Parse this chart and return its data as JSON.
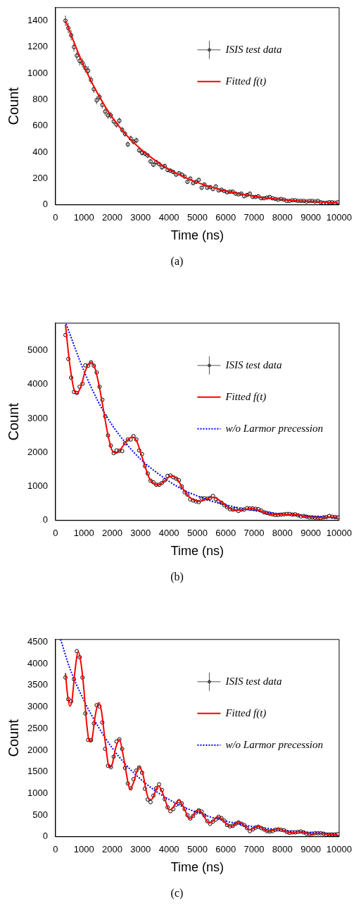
{
  "chart_data": [
    {
      "type": "scatter",
      "xlabel": "Time (ns)",
      "ylabel": "Count",
      "xlim": [
        0,
        10000
      ],
      "ylim": [
        0,
        1500
      ],
      "xticks": [
        0,
        1000,
        2000,
        3000,
        4000,
        5000,
        6000,
        7000,
        8000,
        9000,
        10000
      ],
      "yticks": [
        0,
        200,
        400,
        600,
        800,
        1000,
        1200,
        1400
      ],
      "grid": false,
      "legend": "top right",
      "annotations": [
        "(a)"
      ],
      "series": [
        {
          "name": "ISIS test data",
          "marker": "circle",
          "color": "#000000",
          "x": [
            350,
            450,
            550,
            650,
            750,
            850,
            950,
            1050,
            1150,
            1250,
            1350,
            1450,
            1550,
            1650,
            1750,
            1850,
            1950,
            2050,
            2150,
            2250,
            2350,
            2450,
            2550,
            2650,
            2750,
            2850,
            2950,
            3050,
            3150,
            3250,
            3350,
            3450,
            3550,
            3650,
            3750,
            3850,
            3950,
            4050,
            4150,
            4250,
            4350,
            4450,
            4550,
            4650,
            4750,
            4850,
            4950,
            5050,
            5150,
            5250,
            5350,
            5450,
            5550,
            5650,
            5750,
            5850,
            5950,
            6050,
            6150,
            6250,
            6350,
            6450,
            6550,
            6650,
            6750,
            6850,
            6950,
            7050,
            7150,
            7250,
            7350,
            7450,
            7550,
            7650,
            7750,
            7850,
            7950,
            8050,
            8150,
            8250,
            8350,
            8450,
            8550,
            8650,
            8750,
            8850,
            8950,
            9050,
            9150,
            9250,
            9350,
            9450,
            9550,
            9650,
            9750,
            9850,
            9950
          ],
          "values": [
            1400,
            1345,
            1290,
            1200,
            1135,
            1095,
            1080,
            1040,
            1020,
            950,
            880,
            795,
            820,
            760,
            710,
            680,
            680,
            635,
            610,
            640,
            570,
            540,
            460,
            505,
            480,
            490,
            415,
            395,
            390,
            375,
            330,
            305,
            325,
            310,
            285,
            295,
            265,
            260,
            250,
            230,
            240,
            230,
            215,
            175,
            200,
            165,
            175,
            190,
            130,
            155,
            130,
            135,
            120,
            140,
            110,
            115,
            105,
            95,
            100,
            100,
            85,
            80,
            85,
            65,
            75,
            85,
            60,
            60,
            65,
            50,
            50,
            55,
            60,
            50,
            45,
            40,
            45,
            40,
            30,
            30,
            35,
            35,
            30,
            30,
            30,
            25,
            30,
            30,
            25,
            30,
            20,
            15,
            15,
            20,
            20,
            15,
            20
          ],
          "errors": [
            40,
            40,
            40,
            35,
            35,
            35,
            35,
            35,
            35,
            30,
            30,
            30,
            30,
            30,
            30,
            28,
            28,
            25,
            25,
            25,
            24,
            24,
            22,
            22,
            22,
            22,
            20,
            20,
            20,
            20,
            18,
            18,
            18,
            18,
            17,
            17,
            16,
            16,
            16,
            15,
            15,
            15,
            15,
            14,
            14,
            13,
            13,
            14,
            12,
            12,
            12,
            12,
            11,
            12,
            11,
            11,
            10,
            10,
            10,
            10,
            9,
            9,
            9,
            8,
            9,
            9,
            8,
            8,
            8,
            7,
            7,
            7,
            8,
            7,
            7,
            6,
            7,
            6,
            6,
            6,
            6,
            6,
            6,
            6,
            6,
            5,
            6,
            6,
            5,
            6,
            5,
            null,
            null,
            5,
            5,
            null,
            5
          ]
        },
        {
          "name": "Fitted f(t)",
          "type": "line",
          "marker": "none",
          "color": "#ff0000",
          "x": [
            350,
            1000,
            1500,
            2000,
            2500,
            3000,
            3500,
            4000,
            4500,
            5000,
            5500,
            6000,
            6500,
            7000,
            7500,
            8000,
            8500,
            9000,
            9500,
            9950
          ],
          "values": [
            1400,
            1055,
            840,
            665,
            530,
            425,
            340,
            270,
            215,
            170,
            135,
            105,
            85,
            65,
            50,
            40,
            30,
            25,
            20,
            15
          ]
        }
      ]
    },
    {
      "type": "scatter",
      "xlabel": "Time (ns)",
      "ylabel": "Count",
      "xlim": [
        0,
        10000
      ],
      "ylim": [
        0,
        5800
      ],
      "xticks": [
        0,
        1000,
        2000,
        3000,
        4000,
        5000,
        6000,
        7000,
        8000,
        9000,
        10000
      ],
      "yticks": [
        0,
        1000,
        2000,
        3000,
        4000,
        5000
      ],
      "grid": false,
      "legend": "top right",
      "annotations": [
        "(b)"
      ],
      "series": [
        {
          "name": "ISIS test data",
          "marker": "circle",
          "color": "#000000",
          "x": [
            350,
            450,
            550,
            650,
            750,
            850,
            950,
            1050,
            1150,
            1250,
            1350,
            1450,
            1550,
            1650,
            1750,
            1850,
            1950,
            2050,
            2150,
            2250,
            2350,
            2450,
            2550,
            2650,
            2750,
            2850,
            2950,
            3050,
            3150,
            3250,
            3350,
            3450,
            3550,
            3650,
            3750,
            3850,
            3950,
            4050,
            4150,
            4250,
            4350,
            4450,
            4550,
            4650,
            4750,
            4850,
            4950,
            5050,
            5150,
            5250,
            5350,
            5450,
            5550,
            5650,
            5750,
            5850,
            5950,
            6050,
            6150,
            6250,
            6350,
            6450,
            6550,
            6650,
            6750,
            6850,
            6950,
            7050,
            7150,
            7250,
            7350,
            7450,
            7550,
            7650,
            7750,
            7850,
            7950,
            8050,
            8150,
            8250,
            8350,
            8450,
            8550,
            8650,
            8750,
            8850,
            8950,
            9050,
            9150,
            9250,
            9350,
            9450,
            9550,
            9650,
            9750,
            9850,
            9950
          ],
          "values": [
            5450,
            4750,
            4200,
            3780,
            3750,
            3930,
            4020,
            4560,
            4550,
            4650,
            4550,
            4350,
            3930,
            3550,
            3060,
            2500,
            2200,
            1980,
            2060,
            2050,
            2040,
            2270,
            2380,
            2380,
            2480,
            2380,
            2060,
            1950,
            1600,
            1380,
            1170,
            1120,
            1050,
            1050,
            1100,
            1180,
            1310,
            1320,
            1270,
            1230,
            1180,
            1000,
            830,
            760,
            620,
            590,
            560,
            540,
            650,
            650,
            640,
            660,
            720,
            630,
            560,
            520,
            450,
            390,
            330,
            320,
            330,
            280,
            320,
            320,
            360,
            350,
            350,
            340,
            330,
            290,
            240,
            220,
            200,
            180,
            160,
            160,
            170,
            180,
            190,
            190,
            170,
            180,
            150,
            120,
            130,
            110,
            90,
            90,
            80,
            80,
            70,
            90,
            100,
            130,
            110,
            100,
            90
          ]
        },
        {
          "name": "Fitted f(t)",
          "type": "line",
          "marker": "none",
          "color": "#ff0000",
          "x": [
            350,
            500,
            650,
            750,
            900,
            1050,
            1250,
            1400,
            1550,
            1700,
            1850,
            2000,
            2150,
            2300,
            2500,
            2700,
            2850,
            3000,
            3150,
            3300,
            3450,
            3600,
            3800,
            4000,
            4100,
            4300,
            4500,
            4700,
            4900,
            5100,
            5300,
            5500,
            5650,
            5850,
            6050,
            6250,
            6450,
            6700,
            6900,
            7150,
            7400,
            7700,
            8000,
            8300,
            8550,
            8800,
            9100,
            9400,
            9700,
            9950
          ],
          "values": [
            5750,
            4600,
            3850,
            3730,
            3950,
            4400,
            4650,
            4450,
            3900,
            3200,
            2500,
            2050,
            1980,
            2100,
            2330,
            2450,
            2350,
            2000,
            1600,
            1250,
            1100,
            1040,
            1130,
            1280,
            1300,
            1200,
            920,
            700,
            590,
            560,
            620,
            680,
            660,
            540,
            400,
            310,
            300,
            330,
            350,
            310,
            220,
            170,
            170,
            180,
            160,
            110,
            90,
            80,
            100,
            90
          ]
        },
        {
          "name": "w/o Larmor precession",
          "type": "line",
          "marker": "none",
          "color": "#0000ff",
          "line_style": "dotted",
          "x": [
            370,
            1000,
            1500,
            2000,
            2500,
            3000,
            3500,
            4000,
            4500,
            5000,
            5500,
            6000,
            6500,
            7000,
            7500,
            8000,
            8500,
            9000,
            9500,
            9950
          ],
          "values": [
            5780,
            4400,
            3500,
            2800,
            2250,
            1800,
            1450,
            1150,
            900,
            720,
            570,
            460,
            360,
            290,
            230,
            190,
            150,
            120,
            100,
            80
          ]
        }
      ]
    },
    {
      "type": "scatter",
      "xlabel": "Time (ns)",
      "ylabel": "Count",
      "xlim": [
        0,
        10000
      ],
      "ylim": [
        0,
        4560
      ],
      "xticks": [
        0,
        1000,
        2000,
        3000,
        4000,
        5000,
        6000,
        7000,
        8000,
        9000,
        10000
      ],
      "yticks": [
        0,
        500,
        1000,
        1500,
        2000,
        2500,
        3000,
        3500,
        4000,
        4500
      ],
      "grid": false,
      "legend": "top right",
      "annotations": [
        "(c)"
      ],
      "series": [
        {
          "name": "ISIS test data",
          "marker": "circle",
          "color": "#000000",
          "x": [
            350,
            450,
            550,
            650,
            750,
            850,
            950,
            1050,
            1150,
            1250,
            1350,
            1450,
            1550,
            1650,
            1750,
            1850,
            1950,
            2050,
            2150,
            2250,
            2350,
            2450,
            2550,
            2650,
            2750,
            2850,
            2950,
            3050,
            3150,
            3250,
            3350,
            3450,
            3550,
            3650,
            3750,
            3850,
            3950,
            4050,
            4150,
            4250,
            4350,
            4450,
            4550,
            4650,
            4750,
            4850,
            4950,
            5050,
            5150,
            5250,
            5350,
            5450,
            5550,
            5650,
            5750,
            5850,
            5950,
            6050,
            6150,
            6250,
            6350,
            6450,
            6550,
            6650,
            6750,
            6850,
            6950,
            7050,
            7150,
            7250,
            7350,
            7450,
            7550,
            7650,
            7750,
            7850,
            7950,
            8050,
            8150,
            8250,
            8350,
            8450,
            8550,
            8650,
            8750,
            8850,
            8950,
            9050,
            9150,
            9250,
            9350,
            9450,
            9550,
            9650,
            9750,
            9850,
            9950
          ],
          "values": [
            3680,
            3180,
            3130,
            3640,
            4290,
            4150,
            3680,
            2850,
            2240,
            2230,
            2620,
            3040,
            3010,
            2640,
            2030,
            1640,
            1610,
            1850,
            2200,
            2250,
            2030,
            1590,
            1230,
            1120,
            1330,
            1530,
            1600,
            1480,
            1110,
            860,
            800,
            950,
            1120,
            1210,
            1080,
            870,
            680,
            590,
            640,
            740,
            820,
            770,
            640,
            500,
            420,
            480,
            560,
            610,
            580,
            490,
            360,
            300,
            350,
            400,
            460,
            430,
            370,
            270,
            240,
            250,
            300,
            330,
            300,
            270,
            200,
            130,
            170,
            210,
            230,
            200,
            170,
            130,
            120,
            130,
            160,
            170,
            160,
            150,
            110,
            90,
            100,
            100,
            110,
            120,
            100,
            70,
            60,
            70,
            80,
            80,
            80,
            70,
            50,
            50,
            50,
            50,
            60
          ]
        },
        {
          "name": "Fitted f(t)",
          "type": "line",
          "marker": "none",
          "color": "#ff0000",
          "x": [
            350,
            420,
            500,
            580,
            680,
            800,
            900,
            1000,
            1100,
            1200,
            1280,
            1400,
            1520,
            1620,
            1750,
            1900,
            2000,
            2120,
            2250,
            2380,
            2500,
            2620,
            2750,
            2850,
            2950,
            3080,
            3200,
            3300,
            3400,
            3500,
            3620,
            3750,
            3900,
            4000,
            4100,
            4250,
            4350,
            4450,
            4600,
            4700,
            4800,
            4900,
            5030,
            5150,
            5300,
            5420,
            5550,
            5700,
            5850,
            6000,
            6120,
            6250,
            6450,
            6600,
            6750,
            6850,
            7000,
            7150,
            7300,
            7500,
            7600,
            7850,
            8000,
            8200,
            8400,
            8600,
            8800,
            9000,
            9200,
            9350,
            9600,
            9800,
            9950
          ],
          "values": [
            3780,
            3300,
            3020,
            3150,
            3800,
            4280,
            4000,
            3400,
            2600,
            2200,
            2250,
            2800,
            3100,
            2900,
            2200,
            1600,
            1680,
            2050,
            2250,
            1900,
            1450,
            1100,
            1250,
            1480,
            1610,
            1450,
            1050,
            860,
            870,
            1010,
            1180,
            1050,
            780,
            620,
            640,
            780,
            850,
            760,
            560,
            420,
            440,
            540,
            620,
            560,
            400,
            320,
            360,
            460,
            420,
            310,
            250,
            250,
            340,
            290,
            200,
            160,
            200,
            240,
            190,
            120,
            130,
            180,
            150,
            100,
            90,
            120,
            90,
            60,
            80,
            80,
            50,
            40,
            50
          ]
        },
        {
          "name": "w/o Larmor precession",
          "type": "line",
          "marker": "none",
          "color": "#0000ff",
          "line_style": "dotted",
          "x": [
            180,
            500,
            1000,
            1500,
            2000,
            2500,
            3000,
            3500,
            4000,
            4500,
            5000,
            5500,
            6000,
            6500,
            7000,
            7500,
            8000,
            8500,
            9000,
            9500,
            9950
          ],
          "values": [
            4560,
            3900,
            3150,
            2550,
            2050,
            1650,
            1330,
            1070,
            860,
            690,
            560,
            450,
            360,
            290,
            230,
            190,
            150,
            120,
            100,
            80,
            60
          ]
        }
      ]
    }
  ]
}
